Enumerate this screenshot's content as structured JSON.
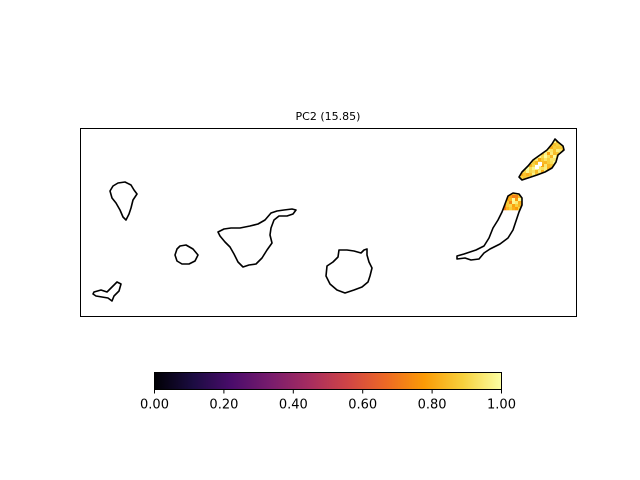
{
  "title": "PC2 (15.85)",
  "colormap": "inferno",
  "colorbar": {
    "range": [
      0.0,
      1.0
    ],
    "ticks": [
      "0.00",
      "0.20",
      "0.40",
      "0.60",
      "0.80",
      "1.00"
    ],
    "stops": [
      "#000004",
      "#1b0c41",
      "#4a0c6b",
      "#781c6d",
      "#a52c60",
      "#cf4446",
      "#ed6925",
      "#fb9b06",
      "#f7d13d",
      "#fcffa4"
    ]
  },
  "islands": [
    "La Palma",
    "El Hierro",
    "La Gomera",
    "Tenerife",
    "Gran Canaria",
    "Fuerteventura",
    "Lanzarote"
  ],
  "chart_data": {
    "type": "heatmap",
    "title": "PC2 (15.85)",
    "value_range": [
      0,
      1
    ],
    "value_summary": {
      "Lanzarote": "high values mostly 0.85–1.00, a few cells near 0.80",
      "Fuerteventura (north tip)": "values 0.70–1.00",
      "other islands": "no data"
    }
  }
}
